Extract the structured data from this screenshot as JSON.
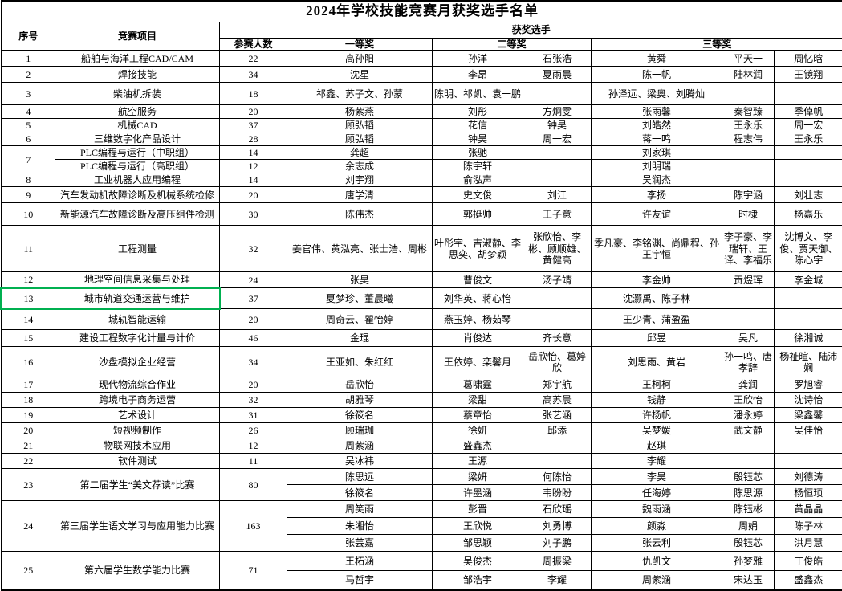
{
  "title": "2024年学校技能竞赛月获奖选手名单",
  "header": {
    "seq": "序号",
    "project": "竞赛项目",
    "winners": "获奖选手",
    "participants": "参赛人数",
    "first_prize": "一等奖",
    "second_prize": "二等奖",
    "third_prize": "三等奖"
  },
  "colors": {
    "grid": "#000000",
    "background": "#FFFFFF",
    "text": "#000000",
    "selection_green": "#00B050"
  },
  "body_rows": [
    {
      "cells": [
        {
          "t": "1"
        },
        {
          "t": "船舶与海洋工程CAD/CAM"
        },
        {
          "t": "22"
        },
        {
          "t": "高孙阳"
        },
        {
          "t": "孙洋"
        },
        {
          "t": "石张浩"
        },
        {
          "t": "黄舜"
        },
        {
          "t": "平天一"
        },
        {
          "t": "周忆晗"
        }
      ]
    },
    {
      "cells": [
        {
          "t": "2"
        },
        {
          "t": "焊接技能"
        },
        {
          "t": "34"
        },
        {
          "t": "沈星"
        },
        {
          "t": "李昂"
        },
        {
          "t": "夏雨晨"
        },
        {
          "t": "陈一帆"
        },
        {
          "t": "陆林润"
        },
        {
          "t": "王镜翔"
        }
      ]
    },
    {
      "cells": [
        {
          "t": "3"
        },
        {
          "t": "柴油机拆装"
        },
        {
          "t": "18"
        },
        {
          "t": "祁鑫、苏子文、孙蒙"
        },
        {
          "t": "陈明、祁凯、袁一鹏"
        },
        {
          "t": ""
        },
        {
          "t": "孙泽远、梁奥、刘腾灿"
        },
        {
          "t": ""
        },
        {
          "t": ""
        }
      ]
    },
    {
      "cells": [
        {
          "t": "4"
        },
        {
          "t": "航空服务"
        },
        {
          "t": "20"
        },
        {
          "t": "杨紫燕"
        },
        {
          "t": "刘彤"
        },
        {
          "t": "方炯雯"
        },
        {
          "t": "张雨馨"
        },
        {
          "t": "秦智臻"
        },
        {
          "t": "季倬帆"
        }
      ]
    },
    {
      "cells": [
        {
          "t": "5"
        },
        {
          "t": "机械CAD"
        },
        {
          "t": "37"
        },
        {
          "t": "顾弘韬"
        },
        {
          "t": "花信"
        },
        {
          "t": "钟昊"
        },
        {
          "t": "刘皓然"
        },
        {
          "t": "王永乐"
        },
        {
          "t": "周一宏"
        }
      ]
    },
    {
      "cells": [
        {
          "t": "6"
        },
        {
          "t": "三维数字化产品设计"
        },
        {
          "t": "28"
        },
        {
          "t": "顾弘韬"
        },
        {
          "t": "钟昊"
        },
        {
          "t": "周一宏"
        },
        {
          "t": "蒋一鸣"
        },
        {
          "t": "程志伟"
        },
        {
          "t": "王永乐"
        }
      ]
    },
    {
      "cells": [
        {
          "t": "7",
          "rs": 2
        },
        {
          "t": "PLC编程与运行（中职组）"
        },
        {
          "t": "14"
        },
        {
          "t": "龚超"
        },
        {
          "t": "张驰"
        },
        {
          "t": ""
        },
        {
          "t": "刘家琪"
        },
        {
          "t": ""
        },
        {
          "t": ""
        }
      ]
    },
    {
      "cells": [
        {
          "t": "PLC编程与运行（高职组）"
        },
        {
          "t": "12"
        },
        {
          "t": "余志成"
        },
        {
          "t": "陈宇轩"
        },
        {
          "t": ""
        },
        {
          "t": "刘明瑞"
        },
        {
          "t": ""
        },
        {
          "t": ""
        }
      ]
    },
    {
      "cells": [
        {
          "t": "8"
        },
        {
          "t": "工业机器人应用编程"
        },
        {
          "t": "14"
        },
        {
          "t": "刘宇翔"
        },
        {
          "t": "俞泓声"
        },
        {
          "t": ""
        },
        {
          "t": "吴润杰"
        },
        {
          "t": ""
        },
        {
          "t": ""
        }
      ]
    },
    {
      "cells": [
        {
          "t": "9"
        },
        {
          "t": "汽车发动机故障诊断及机械系统检修"
        },
        {
          "t": "20"
        },
        {
          "t": "唐学清"
        },
        {
          "t": "史文俊"
        },
        {
          "t": "刘江"
        },
        {
          "t": "李扬"
        },
        {
          "t": "陈宇涵"
        },
        {
          "t": "刘壮志"
        }
      ]
    },
    {
      "cells": [
        {
          "t": "10"
        },
        {
          "t": "新能源汽车故障诊断及高压组件检测"
        },
        {
          "t": "30"
        },
        {
          "t": "陈伟杰"
        },
        {
          "t": "郭挺帅"
        },
        {
          "t": "王子意"
        },
        {
          "t": "许友谊"
        },
        {
          "t": "时棣"
        },
        {
          "t": "杨嘉乐"
        }
      ]
    },
    {
      "cells": [
        {
          "t": "11"
        },
        {
          "t": "工程测量"
        },
        {
          "t": "32"
        },
        {
          "t": "姜官伟、黄泓亮、张士浩、周彬"
        },
        {
          "t": "叶彤宇、吉淑静、李思奕、胡梦颖"
        },
        {
          "t": "张欣怡、李彬、顾顺雄、黄健高"
        },
        {
          "t": "季凡豪、李铭渊、尚鼎程、孙王宇恒"
        },
        {
          "t": "李子豪、李瑞轩、王译、李福乐"
        },
        {
          "t": "沈博文、李俊、贾天御、陈心宇"
        }
      ]
    },
    {
      "cells": [
        {
          "t": "12"
        },
        {
          "t": "地理空间信息采集与处理"
        },
        {
          "t": "24"
        },
        {
          "t": "张昊"
        },
        {
          "t": "曹俊文"
        },
        {
          "t": "汤子靖"
        },
        {
          "t": "李金帅"
        },
        {
          "t": "贡煜珲"
        },
        {
          "t": "李金城"
        }
      ]
    },
    {
      "selected": true,
      "sel_span": 2,
      "cells": [
        {
          "t": "13"
        },
        {
          "t": "城市轨道交通运营与维护"
        },
        {
          "t": "37"
        },
        {
          "t": "夏梦珍、董晨曦"
        },
        {
          "t": "刘华英、蒋心怡"
        },
        {
          "t": ""
        },
        {
          "t": "沈灏禹、陈子林"
        },
        {
          "t": ""
        },
        {
          "t": ""
        }
      ]
    },
    {
      "cells": [
        {
          "t": "14"
        },
        {
          "t": "城轨智能运输"
        },
        {
          "t": "20"
        },
        {
          "t": "周奇云、瞿怡婷"
        },
        {
          "t": "燕玉婷、杨茹琴"
        },
        {
          "t": ""
        },
        {
          "t": "王少青、蒲盈盈"
        },
        {
          "t": ""
        },
        {
          "t": ""
        }
      ]
    },
    {
      "cells": [
        {
          "t": "15"
        },
        {
          "t": "建设工程数字化计量与计价"
        },
        {
          "t": "46"
        },
        {
          "t": "金琨"
        },
        {
          "t": "肖俊达"
        },
        {
          "t": "齐长意"
        },
        {
          "t": "邱昱"
        },
        {
          "t": "吴凡"
        },
        {
          "t": "徐湘诚"
        }
      ]
    },
    {
      "cells": [
        {
          "t": "16"
        },
        {
          "t": "沙盘模拟企业经营"
        },
        {
          "t": "34"
        },
        {
          "t": "王亚如、朱红红"
        },
        {
          "t": "王依婷、栾馨月"
        },
        {
          "t": "岳欣怡、葛婷欣"
        },
        {
          "t": "刘思雨、黄岩"
        },
        {
          "t": "孙一鸣、唐孝辞"
        },
        {
          "t": "杨祉暄、陆沛娴"
        }
      ]
    },
    {
      "cells": [
        {
          "t": "17"
        },
        {
          "t": "现代物流综合作业"
        },
        {
          "t": "20"
        },
        {
          "t": "岳欣怡"
        },
        {
          "t": "葛啸霆"
        },
        {
          "t": "郑宇航"
        },
        {
          "t": "王柯柯"
        },
        {
          "t": "龚润"
        },
        {
          "t": "罗旭睿"
        }
      ]
    },
    {
      "cells": [
        {
          "t": "18"
        },
        {
          "t": "跨境电子商务运营"
        },
        {
          "t": "32"
        },
        {
          "t": "胡雅琴"
        },
        {
          "t": "梁甜"
        },
        {
          "t": "高苏晨"
        },
        {
          "t": "钱静"
        },
        {
          "t": "王欣怡"
        },
        {
          "t": "沈诗怡"
        }
      ]
    },
    {
      "cells": [
        {
          "t": "19"
        },
        {
          "t": "艺术设计"
        },
        {
          "t": "31"
        },
        {
          "t": "徐筱名"
        },
        {
          "t": "蔡章怡"
        },
        {
          "t": "张艺涵"
        },
        {
          "t": "许杨帆"
        },
        {
          "t": "潘永婷"
        },
        {
          "t": "梁鑫馨"
        }
      ]
    },
    {
      "cells": [
        {
          "t": "20"
        },
        {
          "t": "短视频制作"
        },
        {
          "t": "26"
        },
        {
          "t": "顾瑞珈"
        },
        {
          "t": "徐妍"
        },
        {
          "t": "邱添"
        },
        {
          "t": "吴梦媛"
        },
        {
          "t": "武文静"
        },
        {
          "t": "吴佳怡"
        }
      ]
    },
    {
      "cells": [
        {
          "t": "21"
        },
        {
          "t": "物联网技术应用"
        },
        {
          "t": "12"
        },
        {
          "t": "周紫涵"
        },
        {
          "t": "盛鑫杰"
        },
        {
          "t": ""
        },
        {
          "t": "赵琪"
        },
        {
          "t": ""
        },
        {
          "t": ""
        }
      ]
    },
    {
      "cells": [
        {
          "t": "22"
        },
        {
          "t": "软件测试"
        },
        {
          "t": "11"
        },
        {
          "t": "吴冰祎"
        },
        {
          "t": "王源"
        },
        {
          "t": ""
        },
        {
          "t": "李耀"
        },
        {
          "t": ""
        },
        {
          "t": ""
        }
      ]
    },
    {
      "cells": [
        {
          "t": "23",
          "rs": 2
        },
        {
          "t": "第二届学生“美文荐读”比赛",
          "rs": 2
        },
        {
          "t": "80",
          "rs": 2
        },
        {
          "t": "陈思远"
        },
        {
          "t": "梁妍"
        },
        {
          "t": "何陈怡"
        },
        {
          "t": "李昊"
        },
        {
          "t": "殷钰芯"
        },
        {
          "t": "刘德涛"
        }
      ]
    },
    {
      "cells": [
        {
          "t": "徐筱名"
        },
        {
          "t": "许墨涵"
        },
        {
          "t": "韦盼盼"
        },
        {
          "t": "任海婷"
        },
        {
          "t": "陈思源"
        },
        {
          "t": "杨恒顼"
        }
      ]
    },
    {
      "cells": [
        {
          "t": "24",
          "rs": 3
        },
        {
          "t": "第三届学生语文学习与应用能力比赛",
          "rs": 3
        },
        {
          "t": "163",
          "rs": 3
        },
        {
          "t": "周笑雨"
        },
        {
          "t": "彭晋"
        },
        {
          "t": "石欣瑶"
        },
        {
          "t": "魏雨涵"
        },
        {
          "t": "陈钰彬"
        },
        {
          "t": "黄晶晶"
        }
      ]
    },
    {
      "cells": [
        {
          "t": "朱湘怡"
        },
        {
          "t": "王欣悦"
        },
        {
          "t": "刘勇博"
        },
        {
          "t": "颜淼"
        },
        {
          "t": "周娟"
        },
        {
          "t": "陈子林"
        }
      ]
    },
    {
      "cells": [
        {
          "t": "张芸嘉"
        },
        {
          "t": "邹思颖"
        },
        {
          "t": "刘子鹏"
        },
        {
          "t": "张云利"
        },
        {
          "t": "殷钰芯"
        },
        {
          "t": "洪月慧"
        }
      ]
    },
    {
      "cells": [
        {
          "t": "25",
          "rs": 2
        },
        {
          "t": "第六届学生数学能力比赛",
          "rs": 2
        },
        {
          "t": "71",
          "rs": 2
        },
        {
          "t": "王柘涵"
        },
        {
          "t": "吴俊杰"
        },
        {
          "t": "周振梁"
        },
        {
          "t": "仇凯文"
        },
        {
          "t": "孙梦雅"
        },
        {
          "t": "丁俊皓"
        }
      ]
    },
    {
      "cells": [
        {
          "t": "马哲宇"
        },
        {
          "t": "邹浩宇"
        },
        {
          "t": "李耀"
        },
        {
          "t": "周紫涵"
        },
        {
          "t": "宋达玉"
        },
        {
          "t": "盛鑫杰"
        }
      ]
    }
  ]
}
